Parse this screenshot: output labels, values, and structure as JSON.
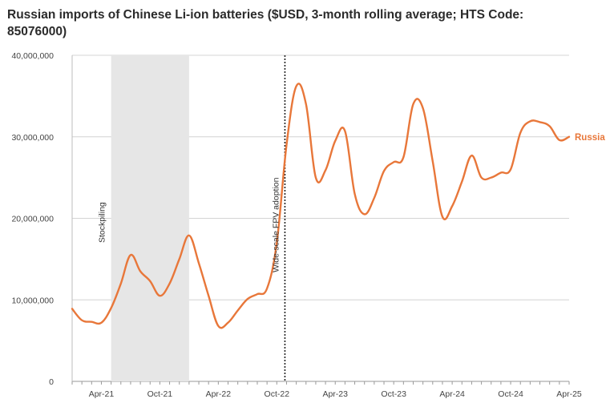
{
  "chart_data": {
    "type": "line",
    "title": "Russian imports of Chinese Li-ion batteries ($USD, 3-month rolling average; HTS Code: 85076000)",
    "xlabel": "",
    "ylabel": "",
    "ylim": [
      0,
      40000000
    ],
    "xlim": [
      "2021-01",
      "2025-04"
    ],
    "grid": "horizontal",
    "line_color": "#e8773a",
    "y_ticks": [
      {
        "value": 0,
        "label": "0"
      },
      {
        "value": 10000000,
        "label": "10,000,000"
      },
      {
        "value": 20000000,
        "label": "20,000,000"
      },
      {
        "value": 30000000,
        "label": "30,000,000"
      },
      {
        "value": 40000000,
        "label": "40,000,000"
      }
    ],
    "x_ticks": [
      {
        "value": "2021-04",
        "label": "Apr-21"
      },
      {
        "value": "2021-10",
        "label": "Oct-21"
      },
      {
        "value": "2022-04",
        "label": "Apr-22"
      },
      {
        "value": "2022-10",
        "label": "Oct-22"
      },
      {
        "value": "2023-04",
        "label": "Apr-23"
      },
      {
        "value": "2023-10",
        "label": "Oct-23"
      },
      {
        "value": "2024-04",
        "label": "Apr-24"
      },
      {
        "value": "2024-10",
        "label": "Oct-24"
      },
      {
        "value": "2025-04",
        "label": "Apr-25"
      }
    ],
    "series": [
      {
        "name": "Russia",
        "x": [
          "2021-01",
          "2021-02",
          "2021-03",
          "2021-04",
          "2021-05",
          "2021-06",
          "2021-07",
          "2021-08",
          "2021-09",
          "2021-10",
          "2021-11",
          "2021-12",
          "2022-01",
          "2022-02",
          "2022-03",
          "2022-04",
          "2022-05",
          "2022-06",
          "2022-07",
          "2022-08",
          "2022-09",
          "2022-10",
          "2022-11",
          "2022-12",
          "2023-01",
          "2023-02",
          "2023-03",
          "2023-04",
          "2023-05",
          "2023-06",
          "2023-07",
          "2023-08",
          "2023-09",
          "2023-10",
          "2023-11",
          "2023-12",
          "2024-01",
          "2024-02",
          "2024-03",
          "2024-04",
          "2024-05",
          "2024-06",
          "2024-07",
          "2024-08",
          "2024-09",
          "2024-10",
          "2024-11",
          "2024-12",
          "2025-01",
          "2025-02",
          "2025-03",
          "2025-04"
        ],
        "values": [
          8900000,
          7500000,
          7300000,
          7200000,
          9000000,
          12000000,
          15500000,
          13500000,
          12300000,
          10500000,
          12000000,
          15000000,
          17900000,
          14500000,
          10500000,
          6800000,
          7200000,
          8700000,
          10100000,
          10700000,
          11400000,
          17000000,
          29000000,
          36200000,
          34000000,
          25000000,
          25900000,
          29500000,
          30700000,
          23000000,
          20500000,
          22500000,
          25800000,
          26900000,
          27500000,
          34000000,
          33500000,
          27000000,
          20200000,
          21500000,
          24500000,
          27700000,
          25000000,
          25000000,
          25600000,
          26000000,
          30500000,
          31900000,
          31800000,
          31300000,
          29600000,
          30000000
        ]
      }
    ],
    "shaded_regions": [
      {
        "from": "2021-05",
        "to": "2022-01",
        "label": "Stockpiling"
      }
    ],
    "vertical_lines": [
      {
        "at": "2022-11",
        "label": "Wide-scale FPV adoption",
        "style": "dotted"
      }
    ]
  }
}
